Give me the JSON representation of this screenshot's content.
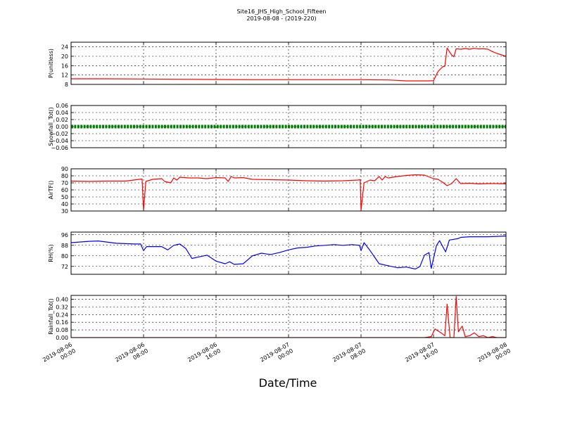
{
  "chart_data": {
    "type": "line",
    "title": "Site16_JHS_High_School_Fifteen",
    "subtitle": "2019-08-08 - (2019-220)",
    "xlabel": "Date/Time",
    "x_range": [
      "2019-08-06 00:00",
      "2019-08-08 00:00"
    ],
    "x_ticks": [
      {
        "value": "2019-08-06 00:00",
        "line1": "2019-08-06",
        "line2": "00:00"
      },
      {
        "value": "2019-08-06 08:00",
        "line1": "2019-08-06",
        "line2": "08:00"
      },
      {
        "value": "2019-08-06 16:00",
        "line1": "2019-08-06",
        "line2": "16:00"
      },
      {
        "value": "2019-08-07 00:00",
        "line1": "2019-08-07",
        "line2": "00:00"
      },
      {
        "value": "2019-08-07 08:00",
        "line1": "2019-08-07",
        "line2": "08:00"
      },
      {
        "value": "2019-08-07 16:00",
        "line1": "2019-08-07",
        "line2": "16:00"
      },
      {
        "value": "2019-08-08 00:00",
        "line1": "2019-08-08",
        "line2": "00:00"
      }
    ],
    "grid": true,
    "panels": [
      {
        "ylabel": "P(unitless)",
        "ylim": [
          8,
          26
        ],
        "yticks": [
          8,
          12,
          16,
          20,
          24
        ],
        "ytick_labels": [
          "8",
          "12",
          "16",
          "20",
          "24"
        ],
        "color": "#ff0000",
        "marker": false,
        "points": [
          [
            "2019-08-06 00:00",
            10.4
          ],
          [
            "2019-08-06 04:00",
            10.4
          ],
          [
            "2019-08-06 08:00",
            10.3
          ],
          [
            "2019-08-06 12:00",
            10.2
          ],
          [
            "2019-08-06 16:00",
            10.1
          ],
          [
            "2019-08-06 20:00",
            10.0
          ],
          [
            "2019-08-07 00:00",
            10.0
          ],
          [
            "2019-08-07 04:00",
            10.0
          ],
          [
            "2019-08-07 08:00",
            10.0
          ],
          [
            "2019-08-07 11:00",
            9.9
          ],
          [
            "2019-08-07 13:00",
            9.5
          ],
          [
            "2019-08-07 15:30",
            9.5
          ],
          [
            "2019-08-07 16:00",
            9.6
          ],
          [
            "2019-08-07 16:30",
            13.5
          ],
          [
            "2019-08-07 17:00",
            15.5
          ],
          [
            "2019-08-07 17:15",
            15.8
          ],
          [
            "2019-08-07 17:30",
            23.5
          ],
          [
            "2019-08-07 18:00",
            20.5
          ],
          [
            "2019-08-07 18:15",
            19.8
          ],
          [
            "2019-08-07 18:30",
            23.2
          ],
          [
            "2019-08-07 19:00",
            23.0
          ],
          [
            "2019-08-07 19:30",
            23.3
          ],
          [
            "2019-08-07 20:00",
            23.0
          ],
          [
            "2019-08-07 20:30",
            23.4
          ],
          [
            "2019-08-07 21:00",
            23.1
          ],
          [
            "2019-08-07 21:30",
            23.2
          ],
          [
            "2019-08-07 22:00",
            23.0
          ],
          [
            "2019-08-07 22:30",
            22.0
          ],
          [
            "2019-08-07 23:00",
            21.2
          ],
          [
            "2019-08-08 00:00",
            20.0
          ]
        ]
      },
      {
        "ylabel": "Snowfall_Tot()",
        "ylim": [
          -0.06,
          0.06
        ],
        "yticks": [
          -0.06,
          -0.04,
          -0.02,
          0.0,
          0.02,
          0.04,
          0.06
        ],
        "ytick_labels": [
          "−0.06",
          "−0.04",
          "−0.02",
          "0.00",
          "0.02",
          "0.04",
          "0.06"
        ],
        "color": "#008000",
        "marker": true,
        "points": [
          [
            "2019-08-06 00:00",
            0.0
          ],
          [
            "2019-08-08 00:00",
            0.0
          ]
        ]
      },
      {
        "ylabel": "AirTF()",
        "ylim": [
          30,
          90
        ],
        "yticks": [
          30,
          40,
          50,
          60,
          70,
          80,
          90
        ],
        "ytick_labels": [
          "30",
          "40",
          "50",
          "60",
          "70",
          "80",
          "90"
        ],
        "color": "#ff0000",
        "marker": false,
        "points": [
          [
            "2019-08-06 00:00",
            72.5
          ],
          [
            "2019-08-06 02:00",
            72.0
          ],
          [
            "2019-08-06 04:00",
            72.5
          ],
          [
            "2019-08-06 06:00",
            72.5
          ],
          [
            "2019-08-06 07:30",
            75.0
          ],
          [
            "2019-08-06 07:50",
            75.5
          ],
          [
            "2019-08-06 08:00",
            31.0
          ],
          [
            "2019-08-06 08:15",
            72.0
          ],
          [
            "2019-08-06 09:00",
            75.0
          ],
          [
            "2019-08-06 10:00",
            76.0
          ],
          [
            "2019-08-06 10:20",
            72.0
          ],
          [
            "2019-08-06 11:00",
            70.0
          ],
          [
            "2019-08-06 11:20",
            77.0
          ],
          [
            "2019-08-06 11:40",
            74.0
          ],
          [
            "2019-08-06 12:00",
            78.0
          ],
          [
            "2019-08-06 13:00",
            77.0
          ],
          [
            "2019-08-06 14:00",
            77.0
          ],
          [
            "2019-08-06 15:00",
            76.0
          ],
          [
            "2019-08-06 16:00",
            77.5
          ],
          [
            "2019-08-06 17:00",
            77.0
          ],
          [
            "2019-08-06 17:20",
            72.0
          ],
          [
            "2019-08-06 17:40",
            79.0
          ],
          [
            "2019-08-06 18:00",
            77.0
          ],
          [
            "2019-08-06 19:00",
            77.5
          ],
          [
            "2019-08-06 20:00",
            75.0
          ],
          [
            "2019-08-06 22:00",
            74.5
          ],
          [
            "2019-08-07 00:00",
            74.0
          ],
          [
            "2019-08-07 02:00",
            73.0
          ],
          [
            "2019-08-07 04:00",
            72.5
          ],
          [
            "2019-08-07 06:00",
            73.0
          ],
          [
            "2019-08-07 07:40",
            74.0
          ],
          [
            "2019-08-07 07:55",
            74.5
          ],
          [
            "2019-08-07 08:00",
            31.0
          ],
          [
            "2019-08-07 08:20",
            70.0
          ],
          [
            "2019-08-07 09:00",
            74.0
          ],
          [
            "2019-08-07 09:30",
            73.0
          ],
          [
            "2019-08-07 10:00",
            79.0
          ],
          [
            "2019-08-07 10:20",
            74.0
          ],
          [
            "2019-08-07 10:40",
            79.0
          ],
          [
            "2019-08-07 11:00",
            77.0
          ],
          [
            "2019-08-07 12:00",
            79.0
          ],
          [
            "2019-08-07 13:00",
            80.5
          ],
          [
            "2019-08-07 14:00",
            81.5
          ],
          [
            "2019-08-07 15:00",
            81.0
          ],
          [
            "2019-08-07 16:00",
            76.0
          ],
          [
            "2019-08-07 16:30",
            75.0
          ],
          [
            "2019-08-07 17:00",
            71.0
          ],
          [
            "2019-08-07 17:30",
            66.0
          ],
          [
            "2019-08-07 18:00",
            69.0
          ],
          [
            "2019-08-07 18:30",
            76.0
          ],
          [
            "2019-08-07 19:00",
            69.0
          ],
          [
            "2019-08-07 20:00",
            69.5
          ],
          [
            "2019-08-07 21:00",
            68.5
          ],
          [
            "2019-08-07 22:00",
            69.0
          ],
          [
            "2019-08-07 23:00",
            69.0
          ],
          [
            "2019-08-08 00:00",
            68.5
          ]
        ]
      },
      {
        "ylabel": "RH(%)",
        "ylim": [
          66,
          98
        ],
        "yticks": [
          72,
          80,
          88,
          96
        ],
        "ytick_labels": [
          "72",
          "80",
          "88",
          "96"
        ],
        "color": "#0000ff",
        "marker": false,
        "points": [
          [
            "2019-08-06 00:00",
            90.0
          ],
          [
            "2019-08-06 02:00",
            91.0
          ],
          [
            "2019-08-06 03:00",
            91.3
          ],
          [
            "2019-08-06 05:00",
            89.5
          ],
          [
            "2019-08-06 07:00",
            89.0
          ],
          [
            "2019-08-06 07:40",
            89.0
          ],
          [
            "2019-08-06 08:00",
            84.0
          ],
          [
            "2019-08-06 08:20",
            87.0
          ],
          [
            "2019-08-06 10:00",
            87.0
          ],
          [
            "2019-08-06 10:40",
            84.5
          ],
          [
            "2019-08-06 11:20",
            88.0
          ],
          [
            "2019-08-06 12:00",
            89.0
          ],
          [
            "2019-08-06 12:40",
            85.5
          ],
          [
            "2019-08-06 13:20",
            78.0
          ],
          [
            "2019-08-06 14:00",
            79.0
          ],
          [
            "2019-08-06 15:00",
            80.5
          ],
          [
            "2019-08-06 16:00",
            76.0
          ],
          [
            "2019-08-06 17:00",
            74.0
          ],
          [
            "2019-08-06 17:30",
            75.5
          ],
          [
            "2019-08-06 18:00",
            73.5
          ],
          [
            "2019-08-06 19:00",
            74.0
          ],
          [
            "2019-08-06 20:00",
            80.0
          ],
          [
            "2019-08-06 21:00",
            82.0
          ],
          [
            "2019-08-06 22:00",
            81.0
          ],
          [
            "2019-08-06 23:00",
            82.5
          ],
          [
            "2019-08-07 00:00",
            84.5
          ],
          [
            "2019-08-07 01:00",
            86.0
          ],
          [
            "2019-08-07 02:00",
            86.5
          ],
          [
            "2019-08-07 03:00",
            87.5
          ],
          [
            "2019-08-07 04:00",
            88.0
          ],
          [
            "2019-08-07 05:00",
            88.5
          ],
          [
            "2019-08-07 06:00",
            88.0
          ],
          [
            "2019-08-07 07:00",
            88.5
          ],
          [
            "2019-08-07 07:50",
            88.0
          ],
          [
            "2019-08-07 08:00",
            84.0
          ],
          [
            "2019-08-07 08:20",
            90.0
          ],
          [
            "2019-08-07 09:00",
            84.0
          ],
          [
            "2019-08-07 09:30",
            79.0
          ],
          [
            "2019-08-07 10:00",
            74.0
          ],
          [
            "2019-08-07 11:00",
            72.5
          ],
          [
            "2019-08-07 12:00",
            71.0
          ],
          [
            "2019-08-07 13:00",
            71.5
          ],
          [
            "2019-08-07 14:00",
            70.0
          ],
          [
            "2019-08-07 14:30",
            72.0
          ],
          [
            "2019-08-07 15:00",
            80.5
          ],
          [
            "2019-08-07 15:30",
            82.5
          ],
          [
            "2019-08-07 15:45",
            70.5
          ],
          [
            "2019-08-07 16:20",
            88.0
          ],
          [
            "2019-08-07 16:40",
            91.5
          ],
          [
            "2019-08-07 17:20",
            83.0
          ],
          [
            "2019-08-07 17:45",
            92.0
          ],
          [
            "2019-08-07 18:40",
            93.0
          ],
          [
            "2019-08-07 19:00",
            94.0
          ],
          [
            "2019-08-07 20:00",
            94.5
          ],
          [
            "2019-08-07 22:00",
            94.5
          ],
          [
            "2019-08-08 00:00",
            95.0
          ]
        ]
      },
      {
        "ylabel": "Rainfall_Tot()",
        "ylim": [
          0,
          0.44
        ],
        "yticks": [
          0.0,
          0.08,
          0.16,
          0.24,
          0.32,
          0.4
        ],
        "ytick_labels": [
          "0.00",
          "0.08",
          "0.16",
          "0.24",
          "0.32",
          "0.40"
        ],
        "color": "#ff0000",
        "marker": false,
        "points": [
          [
            "2019-08-06 00:00",
            0.0
          ],
          [
            "2019-08-07 15:00",
            0.0
          ],
          [
            "2019-08-07 15:45",
            0.01
          ],
          [
            "2019-08-07 16:10",
            0.09
          ],
          [
            "2019-08-07 16:50",
            0.05
          ],
          [
            "2019-08-07 17:15",
            0.02
          ],
          [
            "2019-08-07 17:30",
            0.35
          ],
          [
            "2019-08-07 17:50",
            0.0
          ],
          [
            "2019-08-07 18:15",
            0.0
          ],
          [
            "2019-08-07 18:30",
            0.43
          ],
          [
            "2019-08-07 18:45",
            0.06
          ],
          [
            "2019-08-07 19:10",
            0.12
          ],
          [
            "2019-08-07 19:30",
            0.01
          ],
          [
            "2019-08-07 20:00",
            0.02
          ],
          [
            "2019-08-07 20:30",
            0.05
          ],
          [
            "2019-08-07 21:00",
            0.01
          ],
          [
            "2019-08-07 21:30",
            0.02
          ],
          [
            "2019-08-07 22:00",
            0.0
          ],
          [
            "2019-08-07 22:30",
            0.01
          ],
          [
            "2019-08-07 23:00",
            0.0
          ],
          [
            "2019-08-08 00:00",
            0.0
          ]
        ]
      }
    ]
  }
}
